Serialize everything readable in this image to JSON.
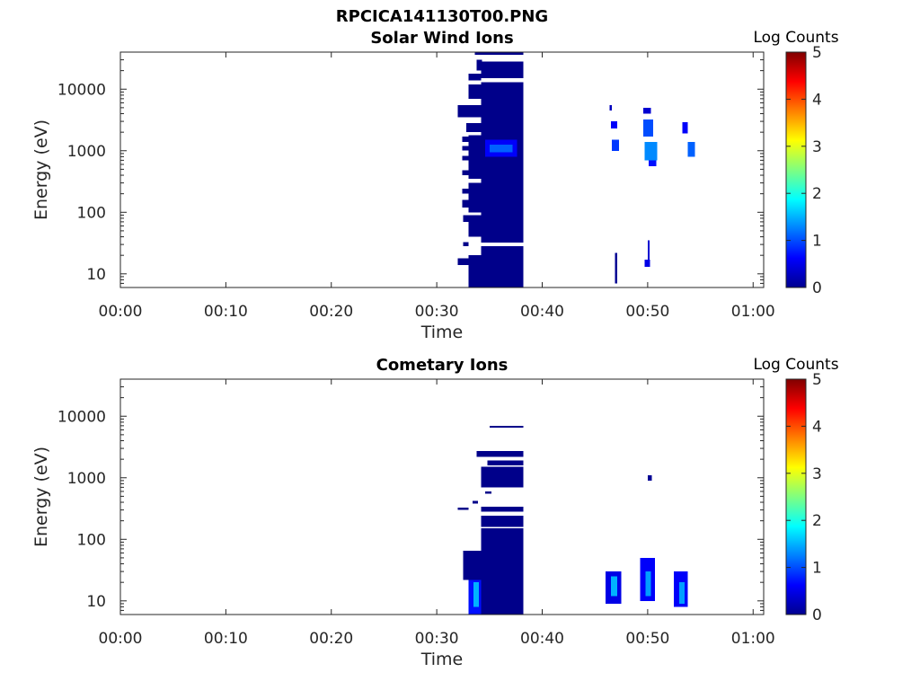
{
  "figure_title": "RPCICA141130T00.PNG",
  "chart_data": [
    {
      "type": "heatmap",
      "title": "Solar Wind Ions",
      "xlabel": "Time",
      "ylabel": "Energy (eV)",
      "x_ticks": [
        "00:00",
        "00:10",
        "00:20",
        "00:30",
        "00:40",
        "00:50",
        "01:00"
      ],
      "xlim_minutes": [
        0,
        61
      ],
      "y_ticks": [
        "10",
        "100",
        "1000",
        "10000"
      ],
      "y_scale": "log",
      "ylim": [
        6,
        40000
      ],
      "colorbar": {
        "label": "Log Counts",
        "ticks": [
          "0",
          "1",
          "2",
          "3",
          "4",
          "5"
        ],
        "range": [
          0,
          5
        ],
        "colormap": "jet"
      },
      "regions": [
        {
          "t0": 33.0,
          "t1": 34.2,
          "e0": 6,
          "e1": 20,
          "v": 0.05
        },
        {
          "t0": 32.0,
          "t1": 33.0,
          "e0": 14,
          "e1": 18,
          "v": 0.05
        },
        {
          "t0": 32.5,
          "t1": 33.0,
          "e0": 28,
          "e1": 33,
          "v": 0.05
        },
        {
          "t0": 33.0,
          "t1": 34.2,
          "e0": 40,
          "e1": 90,
          "v": 0.05
        },
        {
          "t0": 32.5,
          "t1": 33.0,
          "e0": 70,
          "e1": 90,
          "v": 0.05
        },
        {
          "t0": 33.0,
          "t1": 34.2,
          "e0": 100,
          "e1": 300,
          "v": 0.05
        },
        {
          "t0": 32.4,
          "t1": 33.0,
          "e0": 120,
          "e1": 160,
          "v": 0.05
        },
        {
          "t0": 32.4,
          "t1": 33.0,
          "e0": 200,
          "e1": 240,
          "v": 0.05
        },
        {
          "t0": 32.4,
          "t1": 33.0,
          "e0": 400,
          "e1": 480,
          "v": 0.05
        },
        {
          "t0": 33.0,
          "t1": 34.2,
          "e0": 350,
          "e1": 1800,
          "v": 0.05
        },
        {
          "t0": 32.4,
          "t1": 33.0,
          "e0": 700,
          "e1": 820,
          "v": 0.05
        },
        {
          "t0": 32.4,
          "t1": 33.0,
          "e0": 1000,
          "e1": 1200,
          "v": 0.05
        },
        {
          "t0": 32.4,
          "t1": 33.0,
          "e0": 1400,
          "e1": 1700,
          "v": 0.05
        },
        {
          "t0": 32.0,
          "t1": 34.2,
          "e0": 3500,
          "e1": 5500,
          "v": 0.05
        },
        {
          "t0": 32.8,
          "t1": 34.2,
          "e0": 2000,
          "e1": 2800,
          "v": 0.05
        },
        {
          "t0": 33.0,
          "t1": 34.2,
          "e0": 7000,
          "e1": 12000,
          "v": 0.05
        },
        {
          "t0": 33.0,
          "t1": 34.2,
          "e0": 14000,
          "e1": 18000,
          "v": 0.05
        },
        {
          "t0": 33.8,
          "t1": 34.3,
          "e0": 20000,
          "e1": 30000,
          "v": 0.05
        },
        {
          "t0": 34.2,
          "t1": 38.2,
          "e0": 6,
          "e1": 28,
          "v": 0.05
        },
        {
          "t0": 34.2,
          "t1": 38.2,
          "e0": 32,
          "e1": 13000,
          "v": 0.05
        },
        {
          "t0": 34.2,
          "t1": 38.2,
          "e0": 15000,
          "e1": 28000,
          "v": 0.05
        },
        {
          "t0": 34.2,
          "t1": 38.2,
          "e0": 36000,
          "e1": 40000,
          "v": 0.05
        },
        {
          "t0": 33.6,
          "t1": 34.2,
          "e0": 36000,
          "e1": 40000,
          "v": 0.05
        },
        {
          "t0": 34.6,
          "t1": 37.6,
          "e0": 800,
          "e1": 1500,
          "v": 0.6
        },
        {
          "t0": 35.0,
          "t1": 37.2,
          "e0": 950,
          "e1": 1250,
          "v": 1.1
        },
        {
          "t0": 46.9,
          "t1": 47.1,
          "e0": 7,
          "e1": 22,
          "v": 0.1
        },
        {
          "t0": 49.7,
          "t1": 50.2,
          "e0": 13,
          "e1": 17,
          "v": 0.5
        },
        {
          "t0": 50.0,
          "t1": 50.2,
          "e0": 17,
          "e1": 35,
          "v": 0.4
        },
        {
          "t0": 46.4,
          "t1": 46.6,
          "e0": 4500,
          "e1": 5500,
          "v": 0.3
        },
        {
          "t0": 46.5,
          "t1": 47.1,
          "e0": 2300,
          "e1": 3000,
          "v": 0.6
        },
        {
          "t0": 46.6,
          "t1": 47.3,
          "e0": 1000,
          "e1": 1500,
          "v": 0.9
        },
        {
          "t0": 49.6,
          "t1": 50.3,
          "e0": 4000,
          "e1": 5000,
          "v": 0.4
        },
        {
          "t0": 49.6,
          "t1": 50.5,
          "e0": 1700,
          "e1": 3200,
          "v": 1.0
        },
        {
          "t0": 49.7,
          "t1": 50.9,
          "e0": 700,
          "e1": 1400,
          "v": 1.3
        },
        {
          "t0": 50.1,
          "t1": 50.8,
          "e0": 560,
          "e1": 700,
          "v": 0.7
        },
        {
          "t0": 53.3,
          "t1": 53.8,
          "e0": 1900,
          "e1": 2900,
          "v": 0.6
        },
        {
          "t0": 53.8,
          "t1": 54.5,
          "e0": 800,
          "e1": 1400,
          "v": 1.1
        }
      ]
    },
    {
      "type": "heatmap",
      "title": "Cometary Ions",
      "xlabel": "Time",
      "ylabel": "Energy (eV)",
      "x_ticks": [
        "00:00",
        "00:10",
        "00:20",
        "00:30",
        "00:40",
        "00:50",
        "01:00"
      ],
      "xlim_minutes": [
        0,
        61
      ],
      "y_ticks": [
        "10",
        "100",
        "1000",
        "10000"
      ],
      "y_scale": "log",
      "ylim": [
        6,
        40000
      ],
      "colorbar": {
        "label": "Log Counts",
        "ticks": [
          "0",
          "1",
          "2",
          "3",
          "4",
          "5"
        ],
        "range": [
          0,
          5
        ],
        "colormap": "jet"
      },
      "regions": [
        {
          "t0": 32.5,
          "t1": 34.2,
          "e0": 22,
          "e1": 65,
          "v": 0.05
        },
        {
          "t0": 33.0,
          "t1": 34.2,
          "e0": 6,
          "e1": 22,
          "v": 0.7
        },
        {
          "t0": 33.5,
          "t1": 34.0,
          "e0": 8,
          "e1": 20,
          "v": 1.5
        },
        {
          "t0": 34.2,
          "t1": 38.2,
          "e0": 6,
          "e1": 150,
          "v": 0.05
        },
        {
          "t0": 34.2,
          "t1": 38.2,
          "e0": 160,
          "e1": 240,
          "v": 0.05
        },
        {
          "t0": 34.2,
          "t1": 38.2,
          "e0": 280,
          "e1": 340,
          "v": 0.05
        },
        {
          "t0": 34.2,
          "t1": 38.2,
          "e0": 700,
          "e1": 1500,
          "v": 0.05
        },
        {
          "t0": 34.8,
          "t1": 38.2,
          "e0": 1600,
          "e1": 1900,
          "v": 0.05
        },
        {
          "t0": 33.8,
          "t1": 38.2,
          "e0": 2200,
          "e1": 2700,
          "v": 0.05
        },
        {
          "t0": 35.0,
          "t1": 38.2,
          "e0": 6500,
          "e1": 7000,
          "v": 0.05
        },
        {
          "t0": 32.0,
          "t1": 33.0,
          "e0": 300,
          "e1": 330,
          "v": 0.05
        },
        {
          "t0": 33.4,
          "t1": 33.9,
          "e0": 380,
          "e1": 420,
          "v": 0.05
        },
        {
          "t0": 34.6,
          "t1": 35.2,
          "e0": 550,
          "e1": 600,
          "v": 0.05
        },
        {
          "t0": 46.0,
          "t1": 47.5,
          "e0": 9,
          "e1": 30,
          "v": 0.5
        },
        {
          "t0": 46.5,
          "t1": 47.1,
          "e0": 12,
          "e1": 25,
          "v": 1.5
        },
        {
          "t0": 49.3,
          "t1": 50.7,
          "e0": 10,
          "e1": 50,
          "v": 0.6
        },
        {
          "t0": 49.8,
          "t1": 50.3,
          "e0": 12,
          "e1": 30,
          "v": 1.4
        },
        {
          "t0": 50.0,
          "t1": 50.4,
          "e0": 900,
          "e1": 1100,
          "v": 0.1
        },
        {
          "t0": 52.5,
          "t1": 53.8,
          "e0": 8,
          "e1": 30,
          "v": 0.6
        },
        {
          "t0": 53.0,
          "t1": 53.5,
          "e0": 9,
          "e1": 20,
          "v": 1.4
        }
      ]
    }
  ]
}
